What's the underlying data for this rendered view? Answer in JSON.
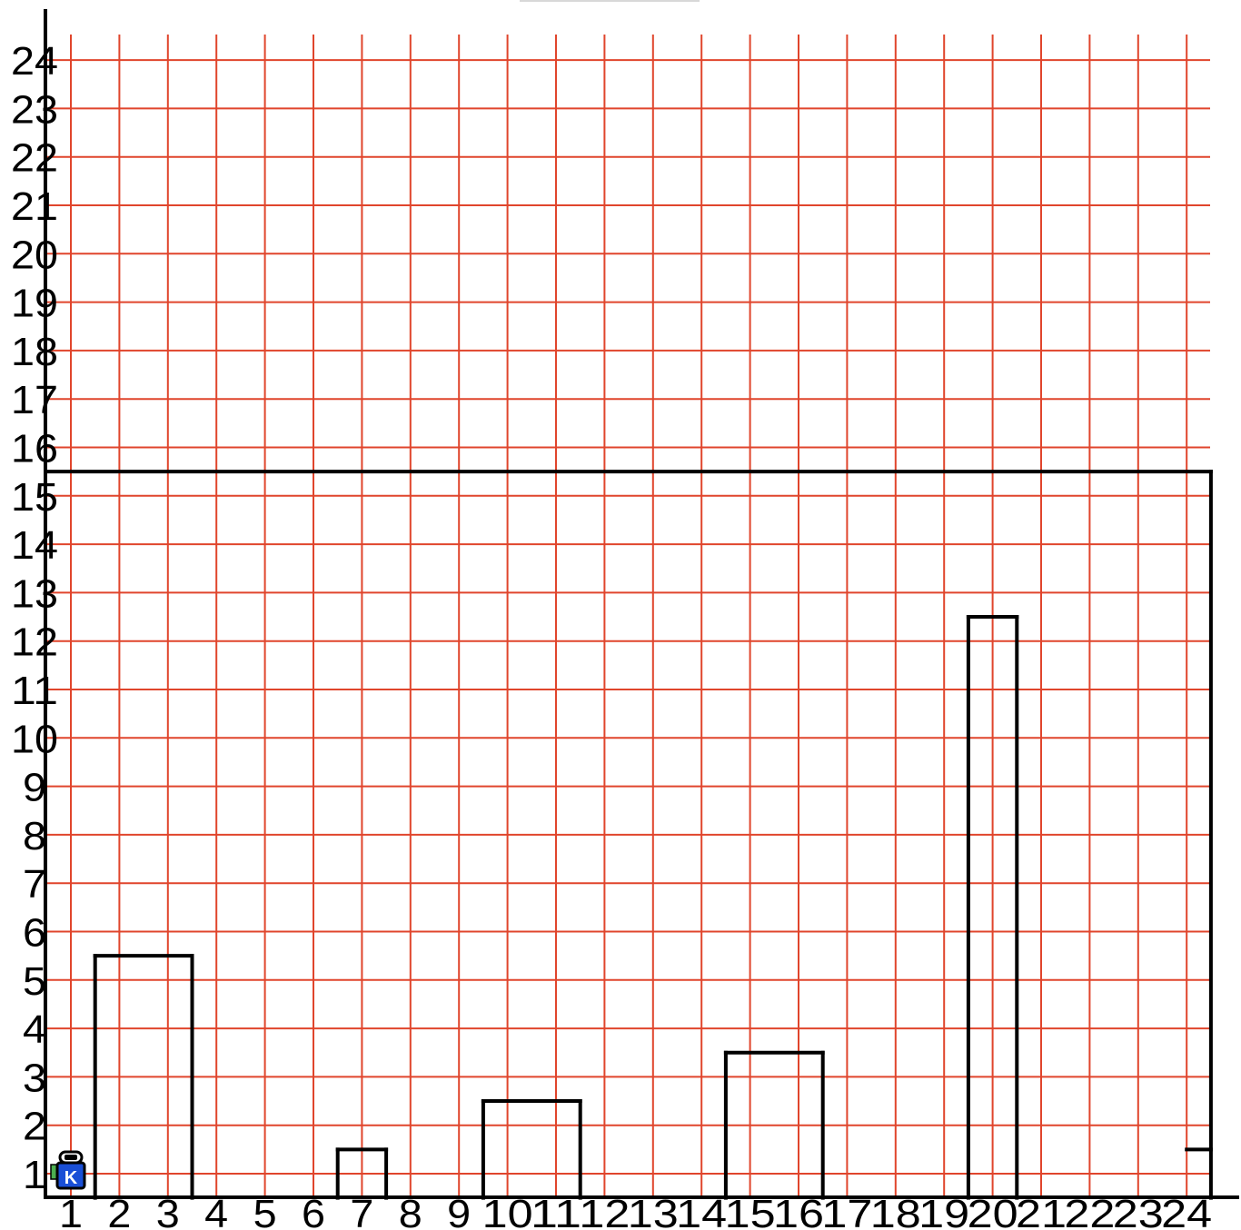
{
  "grid": {
    "cols": 24,
    "rows": 24,
    "x_labels": [
      "1",
      "2",
      "3",
      "4",
      "5",
      "6",
      "7",
      "8",
      "9",
      "10",
      "11",
      "12",
      "13",
      "14",
      "15",
      "16",
      "17",
      "18",
      "19",
      "20",
      "21",
      "22",
      "23",
      "24"
    ],
    "y_labels": [
      "1",
      "2",
      "3",
      "4",
      "5",
      "6",
      "7",
      "8",
      "9",
      "10",
      "11",
      "12",
      "13",
      "14",
      "15",
      "16",
      "17",
      "18",
      "19",
      "20",
      "21",
      "22",
      "23",
      "24"
    ],
    "grid_color": "#e0452c",
    "wall_color": "#000000",
    "axis_color": "#000000"
  },
  "robot": {
    "x": 1,
    "y": 1,
    "label": "K",
    "body_color": "#1a4fd6",
    "accent_color": "#4caf50",
    "icon": "robot-icon"
  },
  "walls": [
    {
      "name": "border-top",
      "x1": 0.5,
      "y1": 15.5,
      "x2": 24.5,
      "y2": 15.5
    },
    {
      "name": "border-right",
      "x1": 24.5,
      "y1": 0.5,
      "x2": 24.5,
      "y2": 15.5
    },
    {
      "name": "block-2-3-left",
      "x1": 1.5,
      "y1": 0.5,
      "x2": 1.5,
      "y2": 5.5
    },
    {
      "name": "block-2-3-top",
      "x1": 1.5,
      "y1": 5.5,
      "x2": 3.5,
      "y2": 5.5
    },
    {
      "name": "block-2-3-right",
      "x1": 3.5,
      "y1": 0.5,
      "x2": 3.5,
      "y2": 5.5
    },
    {
      "name": "block-7-left",
      "x1": 6.5,
      "y1": 0.5,
      "x2": 6.5,
      "y2": 1.5
    },
    {
      "name": "block-7-top",
      "x1": 6.5,
      "y1": 1.5,
      "x2": 7.5,
      "y2": 1.5
    },
    {
      "name": "block-7-right",
      "x1": 7.5,
      "y1": 0.5,
      "x2": 7.5,
      "y2": 1.5
    },
    {
      "name": "block-10-11-left",
      "x1": 9.5,
      "y1": 0.5,
      "x2": 9.5,
      "y2": 2.5
    },
    {
      "name": "block-10-11-top",
      "x1": 9.5,
      "y1": 2.5,
      "x2": 11.5,
      "y2": 2.5
    },
    {
      "name": "block-10-11-right",
      "x1": 11.5,
      "y1": 0.5,
      "x2": 11.5,
      "y2": 2.5
    },
    {
      "name": "block-15-16-left",
      "x1": 14.5,
      "y1": 0.5,
      "x2": 14.5,
      "y2": 3.5
    },
    {
      "name": "block-15-16-top",
      "x1": 14.5,
      "y1": 3.5,
      "x2": 16.5,
      "y2": 3.5
    },
    {
      "name": "block-15-16-right",
      "x1": 16.5,
      "y1": 0.5,
      "x2": 16.5,
      "y2": 3.5
    },
    {
      "name": "block-20-left",
      "x1": 19.5,
      "y1": 0.5,
      "x2": 19.5,
      "y2": 12.5
    },
    {
      "name": "block-20-top",
      "x1": 19.5,
      "y1": 12.5,
      "x2": 20.5,
      "y2": 12.5
    },
    {
      "name": "block-20-right",
      "x1": 20.5,
      "y1": 0.5,
      "x2": 20.5,
      "y2": 12.5
    },
    {
      "name": "ledge-24",
      "x1": 24.0,
      "y1": 1.5,
      "x2": 24.5,
      "y2": 1.5
    }
  ]
}
